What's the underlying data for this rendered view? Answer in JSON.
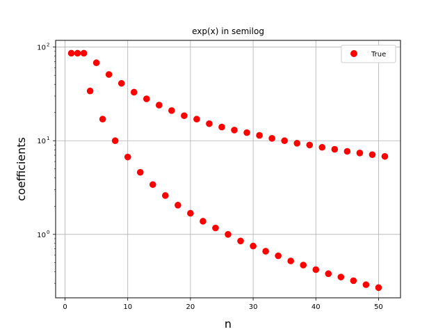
{
  "chart_data": {
    "type": "scatter",
    "title": "exp(x) in semilog",
    "xlabel": "n",
    "ylabel": "coefficients",
    "xlim": [
      -1.5,
      53.5
    ],
    "ylim": [
      0.21,
      118
    ],
    "yscale": "log",
    "grid": true,
    "legend_position": "top-right",
    "marker_color": "#ff0000",
    "x_ticks": [
      0,
      10,
      20,
      30,
      40,
      50
    ],
    "y_ticks": [
      {
        "value": 1,
        "base": "10",
        "exp": "0"
      },
      {
        "value": 10,
        "base": "10",
        "exp": "1"
      },
      {
        "value": 100,
        "base": "10",
        "exp": "2"
      }
    ],
    "series": [
      {
        "name": "True",
        "x": [
          1,
          2,
          3,
          4,
          5,
          6,
          7,
          8,
          9,
          10,
          11,
          12,
          13,
          14,
          15,
          16,
          17,
          18,
          19,
          20,
          21,
          22,
          23,
          24,
          25,
          26,
          27,
          28,
          29,
          30,
          31,
          32,
          33,
          34,
          35,
          36,
          37,
          38,
          39,
          40,
          41,
          42,
          43,
          44,
          45,
          46,
          47,
          48,
          49,
          50,
          51
        ],
        "y": [
          86,
          86,
          86,
          34,
          68,
          17,
          51,
          10,
          41,
          6.7,
          33,
          4.6,
          28,
          3.4,
          24,
          2.6,
          21,
          2.05,
          18.5,
          1.68,
          17,
          1.38,
          15.2,
          1.17,
          14,
          1.0,
          13,
          0.85,
          12.2,
          0.75,
          11.4,
          0.66,
          10.6,
          0.59,
          10,
          0.52,
          9.4,
          0.47,
          9,
          0.42,
          8.5,
          0.38,
          8.1,
          0.35,
          7.7,
          0.32,
          7.4,
          0.29,
          7.1,
          0.27,
          6.8
        ]
      }
    ]
  }
}
